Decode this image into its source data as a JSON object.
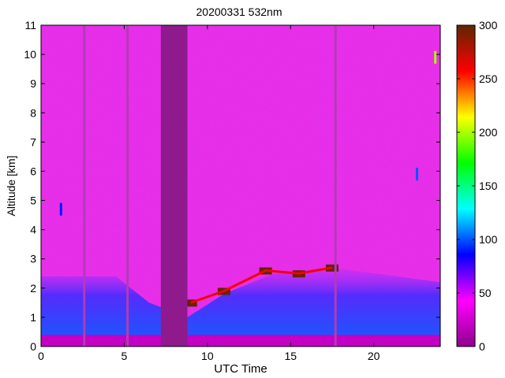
{
  "chart_data": {
    "type": "heatmap",
    "title": "20200331 532nm",
    "xlabel": "UTC Time",
    "ylabel": "Altitude [km]",
    "xlim": [
      0,
      24
    ],
    "ylim": [
      0,
      11
    ],
    "x_ticks": [
      0,
      5,
      10,
      15,
      20
    ],
    "y_ticks": [
      0,
      1,
      2,
      3,
      4,
      5,
      6,
      7,
      8,
      9,
      10,
      11
    ],
    "colorbar": {
      "range": [
        0,
        300
      ],
      "ticks": [
        0,
        50,
        100,
        150,
        200,
        250,
        300
      ],
      "colors": [
        "#8e008e",
        "#ff00ff",
        "#0000ff",
        "#00ffff",
        "#00ff00",
        "#ffff00",
        "#ff0000",
        "#5e2600"
      ]
    },
    "no_data_intervals": [
      [
        7.2,
        8.8
      ]
    ],
    "vertical_dropouts": [
      2.6,
      5.2,
      17.7
    ],
    "surface_layer": {
      "top_km": 0.4,
      "value": 20
    },
    "boundary_layer": [
      {
        "x": 0,
        "top_km": 2.4,
        "value": 60
      },
      {
        "x": 4.5,
        "top_km": 2.4,
        "value": 70
      },
      {
        "x": 6.5,
        "top_km": 1.5,
        "value": 60
      },
      {
        "x": 8.8,
        "top_km": 1.0,
        "value": 80
      },
      {
        "x": 11,
        "top_km": 1.8,
        "value": 100
      },
      {
        "x": 14,
        "top_km": 2.5,
        "value": 130
      },
      {
        "x": 17.5,
        "top_km": 2.7,
        "value": 120
      },
      {
        "x": 24,
        "top_km": 2.2,
        "value": 55
      }
    ],
    "aerosol_layer_top": [
      {
        "x": 9.0,
        "altitude_km": 1.5,
        "value": 300
      },
      {
        "x": 11.0,
        "altitude_km": 1.9,
        "value": 300
      },
      {
        "x": 13.5,
        "altitude_km": 2.6,
        "value": 300
      },
      {
        "x": 15.5,
        "altitude_km": 2.5,
        "value": 300
      },
      {
        "x": 17.5,
        "altitude_km": 2.7,
        "value": 300
      }
    ],
    "isolated_features": [
      {
        "x": 1.2,
        "altitude_km": 4.7,
        "value": 90
      },
      {
        "x": 22.6,
        "altitude_km": 5.9,
        "value": 100
      },
      {
        "x": 23.7,
        "altitude_km": 9.9,
        "value": 200
      }
    ]
  }
}
